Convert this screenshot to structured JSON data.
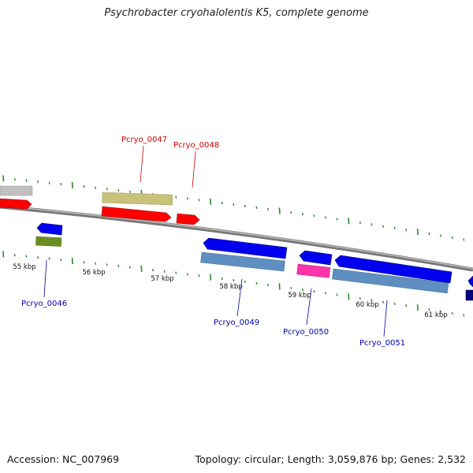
{
  "title": "Psychrobacter cryohalolentis K5, complete genome",
  "footer": {
    "accession": "Accession: NC_007969",
    "summary": "Topology: circular; Length: 3,059,876 bp; Genes: 2,532"
  },
  "scale_labels": [
    "55 kbp",
    "56 kbp",
    "57 kbp",
    "58 kbp",
    "59 kbp",
    "60 kbp",
    "61 kbp"
  ],
  "gene_labels": [
    {
      "text": "Pcryo_0047",
      "color": "#cc0000"
    },
    {
      "text": "Pcryo_0048",
      "color": "#cc0000"
    },
    {
      "text": "Pcryo_0046",
      "color": "#0000aa"
    },
    {
      "text": "Pcryo_0049",
      "color": "#0000aa"
    },
    {
      "text": "Pcryo_0050",
      "color": "#0000aa"
    },
    {
      "text": "Pcryo_0051",
      "color": "#0000aa"
    }
  ],
  "colors": {
    "forward_cds": "#ff0000",
    "reverse_cds": "#0000ee",
    "backbone": "#888888",
    "ticks": "#2a8a2a",
    "khaki": "#c8c27a",
    "grey": "#c0c0c0",
    "olive": "#6b8e23",
    "steel": "#5f8fc0",
    "magenta": "#ff33aa",
    "navy": "#000080"
  }
}
